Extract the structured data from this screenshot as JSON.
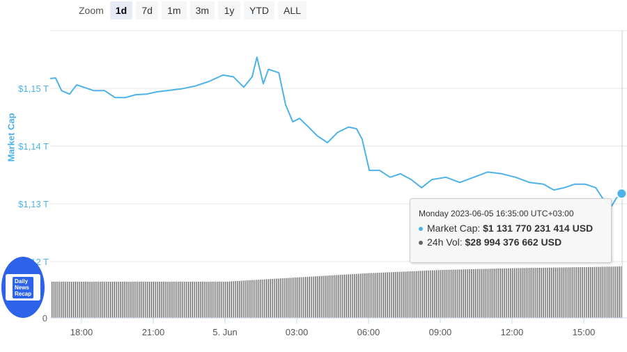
{
  "zoom": {
    "label": "Zoom",
    "buttons": [
      "1d",
      "7d",
      "1m",
      "3m",
      "1y",
      "YTD",
      "ALL"
    ],
    "active": "1d"
  },
  "chart_data": {
    "type": "line",
    "ylabel": "Market Cap",
    "y_ticks": [
      "$1,15 T",
      "$1,14 T",
      "$1,13 T",
      "$1,12 T"
    ],
    "y_tick_values": [
      1.15,
      1.14,
      1.13,
      1.12
    ],
    "volume_axis_ticks": [
      "0"
    ],
    "x_ticks": [
      "18:00",
      "21:00",
      "5. Jun",
      "03:00",
      "06:00",
      "09:00",
      "12:00",
      "15:00"
    ],
    "grid": true,
    "colors": {
      "market_cap": "#4db2e8",
      "volume": "#666666",
      "grid": "#e6e6e6"
    },
    "series": [
      {
        "name": "Market Cap",
        "unit": "T USD",
        "x": [
          "2023-06-04 16:41",
          "16:55",
          "17:10",
          "17:30",
          "17:48",
          "18:05",
          "18:31",
          "18:58",
          "19:24",
          "19:50",
          "20:16",
          "20:43",
          "21:09",
          "21:35",
          "22:10",
          "22:45",
          "23:20",
          "23:55",
          "2023-06-05 00:21",
          "00:47",
          "01:08",
          "01:20",
          "01:36",
          "01:49",
          "02:15",
          "02:32",
          "02:50",
          "03:07",
          "03:25",
          "03:51",
          "04:17",
          "04:43",
          "05:10",
          "05:30",
          "05:44",
          "06:02",
          "06:28",
          "06:54",
          "07:20",
          "07:47",
          "08:13",
          "08:39",
          "09:14",
          "09:49",
          "10:24",
          "10:59",
          "11:34",
          "12:09",
          "12:44",
          "13:19",
          "13:45",
          "14:11",
          "14:37",
          "15:04",
          "15:30",
          "15:47",
          "16:10",
          "16:22",
          "16:35"
        ],
        "values": [
          1.1517,
          1.1518,
          1.1496,
          1.149,
          1.1506,
          1.1502,
          1.1496,
          1.1496,
          1.1484,
          1.1484,
          1.1489,
          1.149,
          1.1494,
          1.1496,
          1.1499,
          1.1504,
          1.1512,
          1.1523,
          1.152,
          1.1502,
          1.152,
          1.1554,
          1.1508,
          1.1533,
          1.1527,
          1.1472,
          1.1442,
          1.1448,
          1.1436,
          1.1418,
          1.1406,
          1.1424,
          1.1433,
          1.143,
          1.1412,
          1.1358,
          1.1358,
          1.1346,
          1.1352,
          1.1342,
          1.1328,
          1.1342,
          1.1346,
          1.1337,
          1.1346,
          1.1355,
          1.1352,
          1.1346,
          1.1337,
          1.1334,
          1.1324,
          1.1328,
          1.1334,
          1.1334,
          1.1328,
          1.131,
          1.1296,
          1.131,
          1.13177
        ]
      },
      {
        "name": "24h Vol",
        "unit": "B USD",
        "x": [
          "2023-06-04 16:41",
          "21:00",
          "2023-06-05 00:00",
          "03:00",
          "06:00",
          "09:00",
          "12:00",
          "15:00",
          "16:35"
        ],
        "values": [
          20.4,
          20.4,
          20.4,
          22.8,
          25.2,
          27.0,
          28.0,
          28.6,
          28.99
        ]
      }
    ]
  },
  "tooltip": {
    "date": "Monday 2023-06-05 16:35:00 UTC+03:00",
    "mcap_label": "Market Cap: ",
    "mcap_value": "$1 131 770 231 414 USD",
    "vol_label": "24h Vol: ",
    "vol_value": "$28 994 376 662 USD"
  },
  "watermark": {
    "text": "Daily News Recap"
  }
}
